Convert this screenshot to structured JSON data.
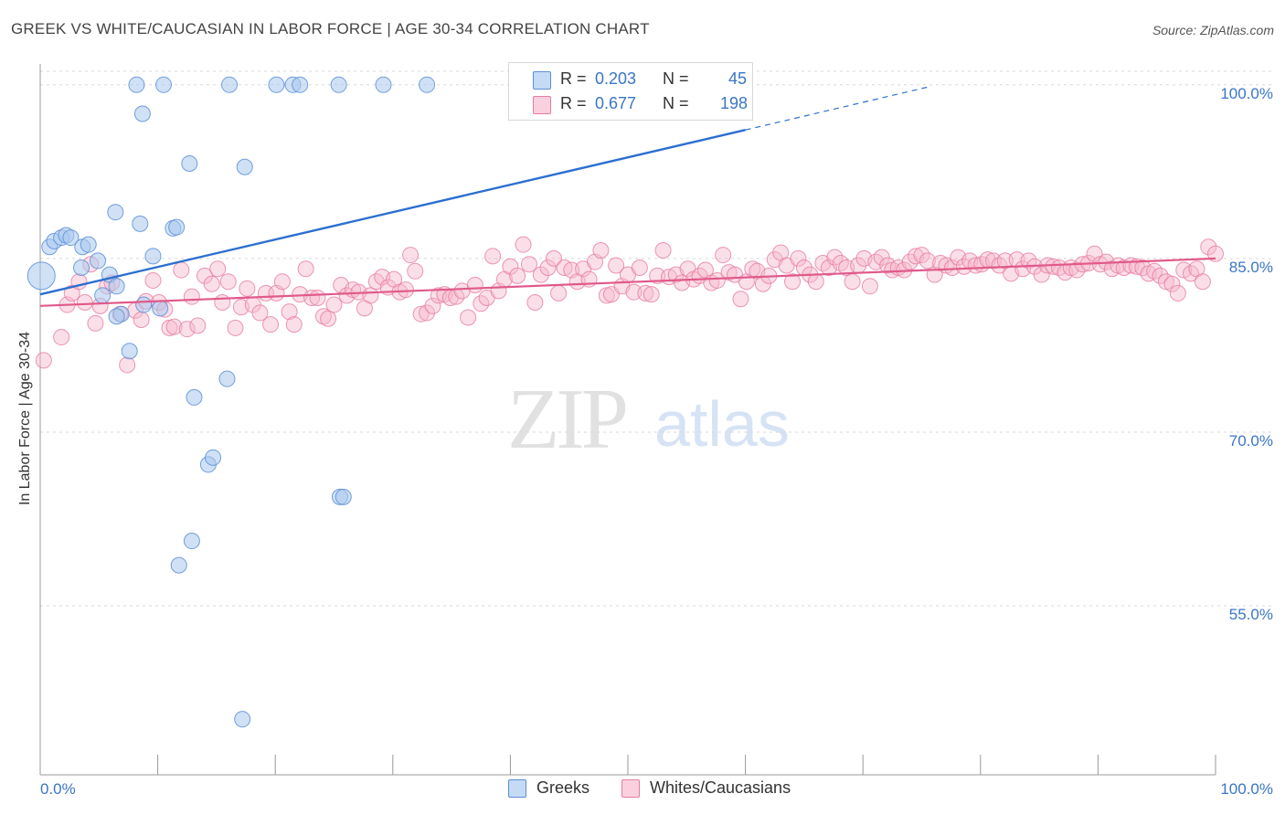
{
  "header": {
    "title": "GREEK VS WHITE/CAUCASIAN IN LABOR FORCE | AGE 30-34 CORRELATION CHART",
    "source": "Source: ZipAtlas.com"
  },
  "watermark": {
    "zip": "ZIP",
    "atlas": "atlas"
  },
  "legend": {
    "greeks": {
      "r_label": "R =",
      "r_value": "0.203",
      "n_label": "N =",
      "n_value": "45"
    },
    "whites": {
      "r_label": "R =",
      "r_value": "0.677",
      "n_label": "N =",
      "n_value": "198"
    }
  },
  "bottom_legend": {
    "greeks": "Greeks",
    "whites": "Whites/Caucasians"
  },
  "colors": {
    "greeks_fill": "#a9c8ef",
    "greeks_stroke": "#5b8fd6",
    "greeks_line": "#2b6fd1",
    "whites_fill": "#f6b8cd",
    "whites_stroke": "#e77ca1",
    "whites_line": "#e0598a",
    "tick": "#3a76c4",
    "grid": "#d8d8d8"
  },
  "chart_data": {
    "type": "scatter",
    "title": "GREEK VS WHITE/CAUCASIAN IN LABOR FORCE | AGE 30-34 CORRELATION CHART",
    "xlabel": "",
    "ylabel": "In Labor Force | Age 30-34",
    "xlim": [
      0,
      100
    ],
    "ylim": [
      40.4,
      101.8
    ],
    "x_tick_labels": [
      "0.0%",
      "100.0%"
    ],
    "y_ticks": [
      55,
      70,
      85,
      100
    ],
    "y_tick_labels": [
      "55.0%",
      "70.0%",
      "85.0%",
      "100.0%"
    ],
    "grid": true,
    "legend_position": "top-center",
    "series": [
      {
        "name": "Greeks",
        "r": 0.203,
        "n": 45,
        "trend": {
          "x": [
            0,
            60
          ],
          "y": [
            81.9,
            96.1
          ],
          "dashed_to": [
            75.5,
            99.8
          ]
        },
        "points": [
          [
            0.1,
            83.5
          ],
          [
            0.8,
            86.0
          ],
          [
            1.2,
            86.5
          ],
          [
            1.8,
            86.8
          ],
          [
            2.2,
            87.0
          ],
          [
            2.6,
            86.8
          ],
          [
            3.6,
            86.0
          ],
          [
            4.1,
            86.2
          ],
          [
            4.9,
            84.8
          ],
          [
            3.5,
            84.2
          ],
          [
            5.3,
            81.8
          ],
          [
            5.9,
            83.6
          ],
          [
            6.5,
            82.6
          ],
          [
            6.9,
            80.2
          ],
          [
            6.5,
            80.0
          ],
          [
            7.6,
            77.0
          ],
          [
            8.5,
            88.0
          ],
          [
            6.4,
            89.0
          ],
          [
            8.2,
            100.0
          ],
          [
            10.5,
            100.0
          ],
          [
            8.7,
            97.5
          ],
          [
            9.6,
            85.2
          ],
          [
            8.8,
            81.0
          ],
          [
            10.2,
            80.7
          ],
          [
            11.3,
            87.6
          ],
          [
            11.6,
            87.7
          ],
          [
            12.7,
            93.2
          ],
          [
            13.1,
            73.0
          ],
          [
            14.3,
            67.2
          ],
          [
            14.7,
            67.8
          ],
          [
            15.9,
            74.6
          ],
          [
            17.4,
            92.9
          ],
          [
            16.1,
            100.0
          ],
          [
            20.1,
            100.0
          ],
          [
            21.5,
            100.0
          ],
          [
            22.1,
            100.0
          ],
          [
            25.4,
            100.0
          ],
          [
            25.5,
            64.4
          ],
          [
            25.8,
            64.4
          ],
          [
            29.2,
            100.0
          ],
          [
            32.9,
            100.0
          ],
          [
            12.9,
            60.6
          ],
          [
            11.8,
            58.5
          ],
          [
            17.2,
            45.2
          ],
          [
            43.2,
            100.0
          ]
        ]
      },
      {
        "name": "Whites/Caucasians",
        "r": 0.677,
        "n": 198,
        "trend": {
          "x": [
            0,
            100
          ],
          "y": [
            80.9,
            85.0
          ]
        },
        "points": [
          [
            0.3,
            76.2
          ],
          [
            1.8,
            78.2
          ],
          [
            2.3,
            81.0
          ],
          [
            2.7,
            82.0
          ],
          [
            3.3,
            83.0
          ],
          [
            3.8,
            81.2
          ],
          [
            4.3,
            84.5
          ],
          [
            4.7,
            79.4
          ],
          [
            5.1,
            80.9
          ],
          [
            5.7,
            82.6
          ],
          [
            6.1,
            82.9
          ],
          [
            6.8,
            80.2
          ],
          [
            7.4,
            75.8
          ],
          [
            8.1,
            80.5
          ],
          [
            8.6,
            79.7
          ],
          [
            9.0,
            81.3
          ],
          [
            9.6,
            83.1
          ],
          [
            10.1,
            81.2
          ],
          [
            10.6,
            80.6
          ],
          [
            11.0,
            79.0
          ],
          [
            11.4,
            79.1
          ],
          [
            12.0,
            84.0
          ],
          [
            12.5,
            78.9
          ],
          [
            12.9,
            81.7
          ],
          [
            13.4,
            79.2
          ],
          [
            14.0,
            83.5
          ],
          [
            14.6,
            82.8
          ],
          [
            15.1,
            84.1
          ],
          [
            15.5,
            81.2
          ],
          [
            16.0,
            83.0
          ],
          [
            16.6,
            79.0
          ],
          [
            17.1,
            80.8
          ],
          [
            17.6,
            82.4
          ],
          [
            18.1,
            81.0
          ],
          [
            18.7,
            80.3
          ],
          [
            19.2,
            82.0
          ],
          [
            19.6,
            79.3
          ],
          [
            20.1,
            82.0
          ],
          [
            20.6,
            83.0
          ],
          [
            21.2,
            80.4
          ],
          [
            21.6,
            79.3
          ],
          [
            22.1,
            81.9
          ],
          [
            22.6,
            84.1
          ],
          [
            23.1,
            81.6
          ],
          [
            23.6,
            81.6
          ],
          [
            24.1,
            80.0
          ],
          [
            24.5,
            79.8
          ],
          [
            25.0,
            81.0
          ],
          [
            25.6,
            82.7
          ],
          [
            26.1,
            81.8
          ],
          [
            26.6,
            82.3
          ],
          [
            27.1,
            82.1
          ],
          [
            27.6,
            80.7
          ],
          [
            28.1,
            81.8
          ],
          [
            28.6,
            83.0
          ],
          [
            29.1,
            83.4
          ],
          [
            29.6,
            82.5
          ],
          [
            30.1,
            83.2
          ],
          [
            30.6,
            82.1
          ],
          [
            31.1,
            82.3
          ],
          [
            31.5,
            85.3
          ],
          [
            31.9,
            83.9
          ],
          [
            32.4,
            80.2
          ],
          [
            32.9,
            80.3
          ],
          [
            33.4,
            80.9
          ],
          [
            33.9,
            81.8
          ],
          [
            34.4,
            81.9
          ],
          [
            34.9,
            81.6
          ],
          [
            35.4,
            81.7
          ],
          [
            35.9,
            82.2
          ],
          [
            36.4,
            79.9
          ],
          [
            37.0,
            82.7
          ],
          [
            37.5,
            81.1
          ],
          [
            38.0,
            81.6
          ],
          [
            38.5,
            85.2
          ],
          [
            39.0,
            82.2
          ],
          [
            39.5,
            83.2
          ],
          [
            40.0,
            84.3
          ],
          [
            40.6,
            83.5
          ],
          [
            41.1,
            86.2
          ],
          [
            41.6,
            84.5
          ],
          [
            42.1,
            81.2
          ],
          [
            42.6,
            83.6
          ],
          [
            43.2,
            84.2
          ],
          [
            43.7,
            85.0
          ],
          [
            44.1,
            82.0
          ],
          [
            44.6,
            84.2
          ],
          [
            45.2,
            84.0
          ],
          [
            45.7,
            83.0
          ],
          [
            46.2,
            84.1
          ],
          [
            46.7,
            83.2
          ],
          [
            47.2,
            84.7
          ],
          [
            47.7,
            85.7
          ],
          [
            48.2,
            81.8
          ],
          [
            48.6,
            81.9
          ],
          [
            49.0,
            84.4
          ],
          [
            49.5,
            82.6
          ],
          [
            50.0,
            83.6
          ],
          [
            50.5,
            82.1
          ],
          [
            51.0,
            84.2
          ],
          [
            51.5,
            82.0
          ],
          [
            52.0,
            81.9
          ],
          [
            52.5,
            83.5
          ],
          [
            53.0,
            85.7
          ],
          [
            53.5,
            83.4
          ],
          [
            54.1,
            83.6
          ],
          [
            54.6,
            82.9
          ],
          [
            55.1,
            84.1
          ],
          [
            55.6,
            83.2
          ],
          [
            56.1,
            83.5
          ],
          [
            56.6,
            84.0
          ],
          [
            57.1,
            82.9
          ],
          [
            57.6,
            83.1
          ],
          [
            58.1,
            85.3
          ],
          [
            58.6,
            83.8
          ],
          [
            59.1,
            83.6
          ],
          [
            59.6,
            81.5
          ],
          [
            60.1,
            83.0
          ],
          [
            60.6,
            84.1
          ],
          [
            61.0,
            83.9
          ],
          [
            61.5,
            82.8
          ],
          [
            62.0,
            83.5
          ],
          [
            62.5,
            84.9
          ],
          [
            63.0,
            85.5
          ],
          [
            63.5,
            84.4
          ],
          [
            64.0,
            83.0
          ],
          [
            64.5,
            85.0
          ],
          [
            65.0,
            84.2
          ],
          [
            65.5,
            83.6
          ],
          [
            66.0,
            83.0
          ],
          [
            66.6,
            84.6
          ],
          [
            67.1,
            84.2
          ],
          [
            67.6,
            85.1
          ],
          [
            68.1,
            84.6
          ],
          [
            68.6,
            84.2
          ],
          [
            69.1,
            83.0
          ],
          [
            69.6,
            84.4
          ],
          [
            70.1,
            85.0
          ],
          [
            70.6,
            82.6
          ],
          [
            71.1,
            84.7
          ],
          [
            71.6,
            85.1
          ],
          [
            72.1,
            84.4
          ],
          [
            72.5,
            84.0
          ],
          [
            73.0,
            84.2
          ],
          [
            73.5,
            84.0
          ],
          [
            74.0,
            84.7
          ],
          [
            74.5,
            85.2
          ],
          [
            75.0,
            85.3
          ],
          [
            75.5,
            84.8
          ],
          [
            76.1,
            83.6
          ],
          [
            76.6,
            84.6
          ],
          [
            77.1,
            84.4
          ],
          [
            77.6,
            84.2
          ],
          [
            78.1,
            85.1
          ],
          [
            78.6,
            84.3
          ],
          [
            79.1,
            84.8
          ],
          [
            79.6,
            84.4
          ],
          [
            80.1,
            84.5
          ],
          [
            80.6,
            84.9
          ],
          [
            81.1,
            84.8
          ],
          [
            81.6,
            84.4
          ],
          [
            82.1,
            84.8
          ],
          [
            82.6,
            83.7
          ],
          [
            83.1,
            84.9
          ],
          [
            83.6,
            84.1
          ],
          [
            84.1,
            84.8
          ],
          [
            84.6,
            84.3
          ],
          [
            85.2,
            83.6
          ],
          [
            85.7,
            84.4
          ],
          [
            86.2,
            84.3
          ],
          [
            86.7,
            84.2
          ],
          [
            87.2,
            83.8
          ],
          [
            87.7,
            84.2
          ],
          [
            88.2,
            84.0
          ],
          [
            88.7,
            84.5
          ],
          [
            89.2,
            84.6
          ],
          [
            89.7,
            85.4
          ],
          [
            90.2,
            84.5
          ],
          [
            90.7,
            84.7
          ],
          [
            91.2,
            84.1
          ],
          [
            91.7,
            84.4
          ],
          [
            92.2,
            84.2
          ],
          [
            92.8,
            84.4
          ],
          [
            93.3,
            84.3
          ],
          [
            93.8,
            84.2
          ],
          [
            94.3,
            83.7
          ],
          [
            94.8,
            83.9
          ],
          [
            95.3,
            83.5
          ],
          [
            95.8,
            83.0
          ],
          [
            96.3,
            82.8
          ],
          [
            96.8,
            82.0
          ],
          [
            97.3,
            84.0
          ],
          [
            97.9,
            83.7
          ],
          [
            98.4,
            84.1
          ],
          [
            98.9,
            83.0
          ],
          [
            99.4,
            86.0
          ],
          [
            100.0,
            85.4
          ]
        ]
      }
    ]
  }
}
